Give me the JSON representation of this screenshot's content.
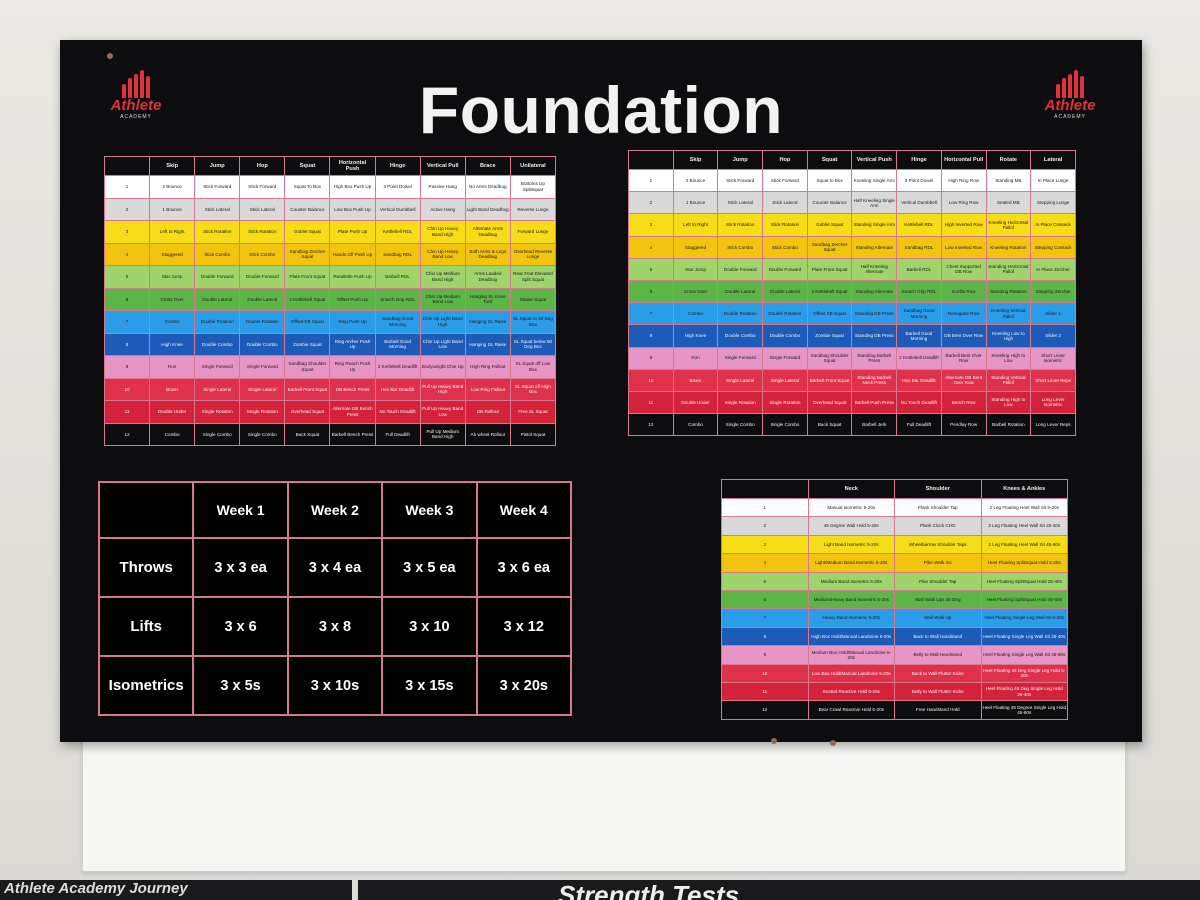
{
  "title": "Foundation",
  "logo": {
    "brand": "Athlete",
    "sub": "ACADEMY"
  },
  "colors": {
    "row_colors": [
      "#ffffff",
      "#d9d9d9",
      "#f7dc18",
      "#f3c40f",
      "#9ed46a",
      "#5cb547",
      "#2a9de8",
      "#1c5bb8",
      "#e695c6",
      "#e0314c",
      "#d3223a",
      "#0d0d0f"
    ]
  },
  "table1": {
    "headers": [
      "",
      "Skip",
      "Jump",
      "Hop",
      "Squat",
      "Horizontal Push",
      "Hinge",
      "Vertical Pull",
      "Brace",
      "Unilateral"
    ],
    "rows": [
      [
        "1",
        "2 Bounce",
        "Stick Forward",
        "Stick Forward",
        "Squat To Box",
        "High Box Push Up",
        "3 Point Dowel",
        "Passive Hang",
        "No Arms Deadbug",
        "Bottoms Up Splitsquat"
      ],
      [
        "2",
        "1 Bounce",
        "Stick Lateral",
        "Stick Lateral",
        "Counter Balance",
        "Low Box Push Up",
        "Vertical Dumbbell",
        "Active Hang",
        "Light Band Deadbug",
        "Reverse Lunge"
      ],
      [
        "3",
        "Left to Right",
        "Stick Rotation",
        "Stick Rotation",
        "Goblet Squat",
        "Plate Push Up",
        "Kettlebell RDL",
        "Chin Up Heavy Band High",
        "Alternate Arms Deadbug",
        "Forward Lunge"
      ],
      [
        "4",
        "Staggered",
        "Stick Combo",
        "Stick Combo",
        "Sandbag Zercher Squat",
        "Hands Off Push Up",
        "Sandbag RDL",
        "Chin Up Heavy Band Low",
        "Both Arms & Legs Deadbug",
        "Overhead Reverse Lunge"
      ],
      [
        "5",
        "Star Jump",
        "Double Forward",
        "Double Forward",
        "Plate Front Squat",
        "Parallette Push Up",
        "Barbell RDL",
        "Chin Up Medium Band High",
        "Arms Loaded Deadbug",
        "Rear Foot Elevated Split Squat"
      ],
      [
        "6",
        "Cross Over",
        "Double Lateral",
        "Double Lateral",
        "2 Kettlebell Squat",
        "Offset Push Up",
        "Snatch Grip RDL",
        "Chin Up Medium Band Low",
        "Hanging SL Knee Tuck",
        "Skater Squat"
      ],
      [
        "7",
        "Combo",
        "Double Rotation",
        "Double Rotation",
        "Offset KB Squat",
        "Ring Push Up",
        "Sandbag Good Morning",
        "Chin Up Light Band High",
        "Hanging SL Raise",
        "SL Squat to 30 Deg Box"
      ],
      [
        "8",
        "High Knee",
        "Double Combo",
        "Double Combo",
        "Zombie Squat",
        "Ring Archer Push Up",
        "Barbell Good Morning",
        "Chin Up Light Band Low",
        "Hanging DL Raise",
        "SL Squat below 90 Deg Box"
      ],
      [
        "9",
        "Run",
        "Single Forward",
        "Single Forward",
        "Sandbag Shoulder Squat",
        "Ring Reach Push Up",
        "2 Kettlebell Deadlift",
        "Bodyweight Chin Up",
        "High Ring Fallout",
        "SL Squat off Low Box"
      ],
      [
        "10",
        "Boxer",
        "Single Lateral",
        "Single Lateral",
        "Barbell Front Squat",
        "DB Bench Press",
        "Hex Bar Deadlift",
        "Pull Up Heavy Band High",
        "Low Ring Fallout",
        "SL Squat off High Box"
      ],
      [
        "11",
        "Double Under",
        "Single Rotation",
        "Single Rotation",
        "Overhead Squat",
        "Alternate DB Bench Press",
        "No Touch Deadlift",
        "Pull Up Heavy Band Low",
        "DB Rollout",
        "Free SL Squat"
      ],
      [
        "12",
        "Combo",
        "Single Combo",
        "Single Combo",
        "Back Squat",
        "Barbell Bench Press",
        "Full Deadlift",
        "Pull Up Medium Band High",
        "Ab wheel Rollout",
        "Pistol Squat"
      ]
    ]
  },
  "table2": {
    "headers": [
      "",
      "Skip",
      "Jump",
      "Hop",
      "Squat",
      "Vertical Push",
      "Hinge",
      "Horizontal Pull",
      "Rotate",
      "Lateral"
    ],
    "rows": [
      [
        "1",
        "2 Bounce",
        "Stick Forward",
        "Stick Forward",
        "Squat to Box",
        "Kneeling Single Arm",
        "3 Point Dowel",
        "High Ring Row",
        "Standing MB",
        "In Place Lunge"
      ],
      [
        "2",
        "1 Bounce",
        "Stick Lateral",
        "Stick Lateral",
        "Counter Balance",
        "Half Kneeling Single Arm",
        "Vertical Dumbbell",
        "Low Ring Row",
        "Seated MB",
        "Stepping Lunge"
      ],
      [
        "3",
        "Left to Right",
        "Stick Rotation",
        "Stick Rotation",
        "Goblet Squat",
        "Standing Single Arm",
        "Kettlebell RDL",
        "High Inverted Row",
        "Kneeling Horizontal Pallof",
        "In Place Cossack"
      ],
      [
        "4",
        "Staggered",
        "Stick Combo",
        "Stick Combo",
        "Sandbag Zercher Squat",
        "Standing Alternate",
        "Sandbag RDL",
        "Low Inverted Row",
        "Kneeling Rotation",
        "Stepping Cossack"
      ],
      [
        "5",
        "Star Jump",
        "Double Forward",
        "Double Forward",
        "Plate Front Squat",
        "Half Kneeling Alternate",
        "Barbell RDL",
        "Chest Supported DB Row",
        "Standing Horizontal Pallof",
        "In Place Zercher"
      ],
      [
        "6",
        "Cross Over",
        "Double Lateral",
        "Double Lateral",
        "2 Kettlebell Squat",
        "Standing Alternate",
        "Snatch Grip RDL",
        "Gorilla Row",
        "Standing Rotation",
        "Stepping Zercher"
      ],
      [
        "7",
        "Combo",
        "Double Rotation",
        "Double Rotation",
        "Offset KB Squat",
        "Standing DB Press",
        "Sandbag Good Morning",
        "Renegade Row",
        "Kneeling Vertical Pallof",
        "Slider 1"
      ],
      [
        "8",
        "High Knee",
        "Double Combo",
        "Double Combo",
        "Zombie Squat",
        "Standing DB Press",
        "Barbell Good Morning",
        "DB Bent Over Row",
        "Kneeling Low to High",
        "Slider 2"
      ],
      [
        "9",
        "Run",
        "Single Forward",
        "Single Forward",
        "Sandbag Shoulder Squat",
        "Standing Barbell Press",
        "2 Kettlebell Deadlift",
        "Barbell Bent Over Row",
        "Kneeling High to Low",
        "Short Lever Isometric"
      ],
      [
        "10",
        "Boxer",
        "Single Lateral",
        "Single Lateral",
        "Barbell Front Squat",
        "Standing Barbell Neck Press",
        "Hex Bar Deadlift",
        "Alternate DB Bent Over Row",
        "Standing Vertical Pallof",
        "Short Lever Reps"
      ],
      [
        "11",
        "Double Under",
        "Single Rotation",
        "Single Rotation",
        "Overhead Squat",
        "Barbell Push Press",
        "No Touch Deadlift",
        "Bench Row",
        "Standing High to Low",
        "Long Lever Isometric"
      ],
      [
        "12",
        "Combo",
        "Single Combo",
        "Single Combo",
        "Back Squat",
        "Barbell Jerk",
        "Full Deadlift",
        "Pendlay Row",
        "Barbell Rotation",
        "Long Lever Reps"
      ]
    ]
  },
  "table3": {
    "headers": [
      "",
      "Neck",
      "Shoulder",
      "Knees & Ankles"
    ],
    "rows": [
      [
        "1",
        "Manual Isometric 5-20s",
        "Plank Shoulder Tap",
        "2 Leg Floating Heel Wall Sit 5-20s"
      ],
      [
        "2",
        "45 Degree Wall Hold 5-20s",
        "Plank Clock CHG",
        "2 Leg Floating Heel Wall Sit 25-40s"
      ],
      [
        "3",
        "Light Band Isometric 5-20s",
        "Wheelbarrow Shoulder Taps",
        "2 Leg Floating Heel Wall Sit 45-60s"
      ],
      [
        "4",
        "Light/Medium Band Isometric 5-20s",
        "Pike Walk Ins",
        "Heel Floating SplitSquat Hold 5-20s"
      ],
      [
        "5",
        "Medium Band Isometric 5-20s",
        "Pike Shoulder Tap",
        "Heel Floating SplitSquat Hold 25-40s"
      ],
      [
        "6",
        "Medium/Heavy Band Isometric 5-20s",
        "Wall Walk Ups 45 Deg",
        "Heel Floating SplitSquat Hold 45-60s"
      ],
      [
        "7",
        "Heavy Band Isometric 5-20s",
        "Wall Walk Up",
        "Heel Floating Single Leg Wall Sit 5-20s"
      ],
      [
        "8",
        "High Box Hold/Manual Landmine 5-20s",
        "Back to Wall Handstand",
        "Heel Floating Single Leg Wall Sit 25-40s"
      ],
      [
        "9",
        "Medium Box Hold/Manual Landmine 5-20s",
        "Belly to Wall Handstand",
        "Heel Floating Single Leg Wall Sit 45-60s"
      ],
      [
        "10",
        "Low Box Hold/Manual Landmine 5-20s",
        "Back to Wall Flutter Kicks",
        "Heel Floating 45 Deg Single Leg Hold 5-20s"
      ],
      [
        "11",
        "Seated Reactive Hold 5-20s",
        "Belly to Wall Flutter Kicks",
        "Heel Floating 45 Deg Single Leg Hold 25-40s"
      ],
      [
        "12",
        "Bear Crawl Reactive Hold 5-20s",
        "Free Handstand Hold",
        "Heel Floating 45 Degree Single Leg Hold 45-60s"
      ]
    ]
  },
  "weeks": {
    "headers": [
      "",
      "Week 1",
      "Week 2",
      "Week 3",
      "Week 4"
    ],
    "rows": [
      [
        "Throws",
        "3 x 3 ea",
        "3 x 4 ea",
        "3 x 5 ea",
        "3 x 6 ea"
      ],
      [
        "Lifts",
        "3 x 6",
        "3 x 8",
        "3 x 10",
        "3 x 12"
      ],
      [
        "Isometrics",
        "3 x 5s",
        "3 x 10s",
        "3 x 15s",
        "3 x 20s"
      ]
    ]
  },
  "banners": {
    "left": "Athlete Academy Journey",
    "right": "Strength Tests"
  }
}
